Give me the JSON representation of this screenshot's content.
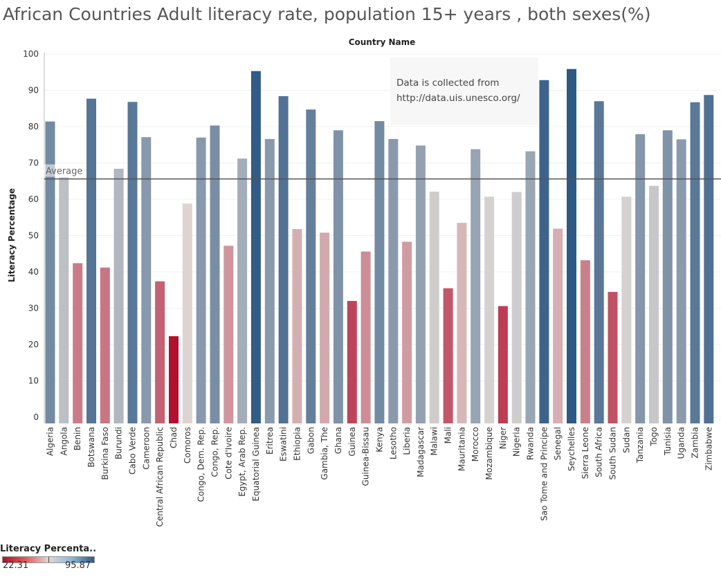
{
  "title": "African Countries Adult literacy rate, population 15+ years , both sexes(%)",
  "annotation": {
    "line1": "Data is collected from",
    "line2": "http://data.uis.unesco.org/"
  },
  "legend": {
    "title": "Literacy Percenta..",
    "min_label": "22.31",
    "max_label": "95.87"
  },
  "colors": {
    "low": "#b2102f",
    "mid": "#ddd6d2",
    "high": "#2f5985",
    "reference_line": "#555555"
  },
  "chart_data": {
    "type": "bar",
    "title": "African Countries Adult literacy rate, population 15+ years , both sexes(%)",
    "xlabel": "Country Name",
    "ylabel": "Literacy Percentage",
    "ylim": [
      0,
      100
    ],
    "yticks": [
      0,
      10,
      20,
      30,
      40,
      50,
      60,
      70,
      80,
      90,
      100
    ],
    "reference_line": {
      "label": "Average",
      "value": 65.6
    },
    "color_scale": {
      "min": 22.31,
      "max": 95.87,
      "midpoint": 59.09
    },
    "categories": [
      "Algeria",
      "Angola",
      "Benin",
      "Botswana",
      "Burkina Faso",
      "Burundi",
      "Cabo Verde",
      "Cameroon",
      "Central African Republic",
      "Chad",
      "Comoros",
      "Congo, Dem. Rep.",
      "Congo, Rep.",
      "Cote d'Ivoire",
      "Egypt, Arab Rep.",
      "Equatorial Guinea",
      "Eritrea",
      "Eswatini",
      "Ethiopia",
      "Gabon",
      "Gambia, The",
      "Ghana",
      "Guinea",
      "Guinea-Bissau",
      "Kenya",
      "Lesotho",
      "Liberia",
      "Madagascar",
      "Malawi",
      "Mali",
      "Mauritania",
      "Morocco",
      "Mozambique",
      "Niger",
      "Nigeria",
      "Rwanda",
      "Sao Tome and Principe",
      "Senegal",
      "Seychelles",
      "Sierra Leone",
      "South Africa",
      "South Sudan",
      "Sudan",
      "Tanzania",
      "Togo",
      "Tunisia",
      "Uganda",
      "Zambia",
      "Zimbabwe"
    ],
    "values": [
      81.4,
      66.0,
      42.4,
      87.7,
      41.2,
      68.4,
      86.8,
      77.1,
      37.4,
      22.31,
      58.8,
      77.0,
      80.3,
      47.2,
      71.2,
      95.3,
      76.6,
      88.4,
      51.8,
      84.7,
      50.8,
      79.0,
      32.0,
      45.6,
      81.5,
      76.6,
      48.3,
      74.8,
      62.1,
      35.5,
      53.5,
      73.8,
      60.7,
      30.6,
      62.0,
      73.2,
      92.8,
      51.9,
      95.87,
      43.2,
      87.0,
      34.5,
      60.7,
      77.9,
      63.7,
      79.0,
      76.5,
      86.7,
      88.7
    ]
  }
}
